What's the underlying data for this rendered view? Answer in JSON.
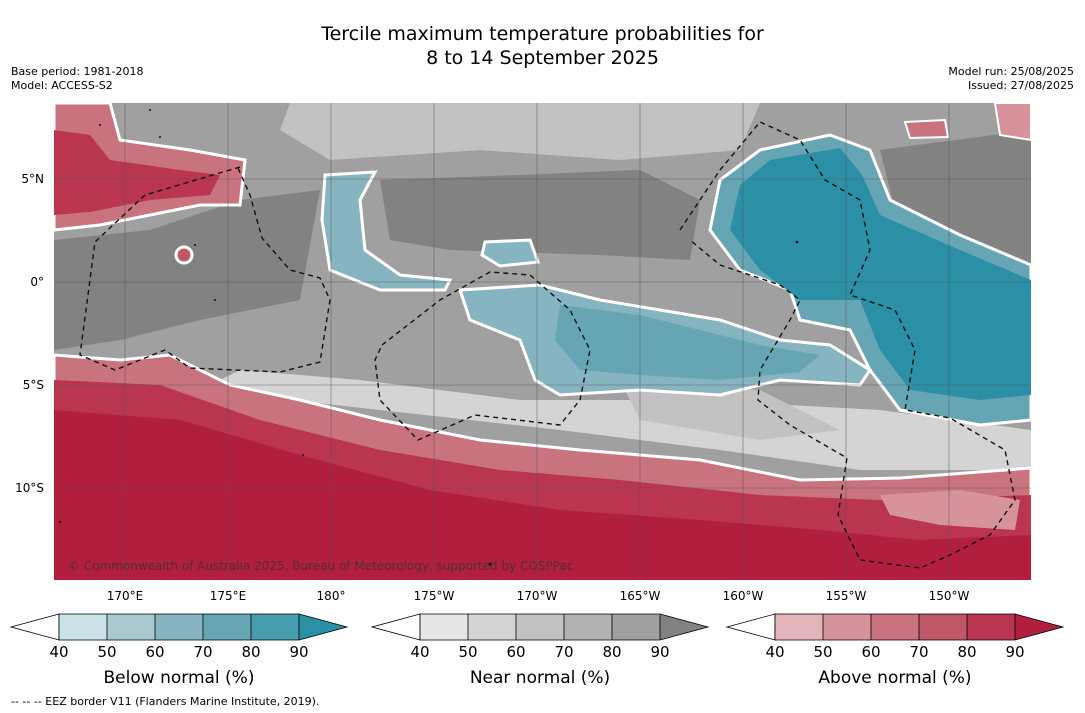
{
  "title_line1": "Tercile maximum temperature probabilities for",
  "title_line2": "8 to 14 September 2025",
  "base_period": "Base period: 1981-2018",
  "model": "Model: ACCESS-S2",
  "model_run": "Model run: 25/08/2025",
  "issued": "Issued: 27/08/2025",
  "copyright": "© Commonwealth of Australia 2025, Bureau of Meteorology, supported by COSPPac",
  "lon_labels": [
    "170°E",
    "175°E",
    "180°",
    "175°W",
    "170°W",
    "165°W",
    "160°W",
    "155°W",
    "150°W"
  ],
  "lat_labels": [
    "5°N",
    "0°",
    "5°S",
    "10°S"
  ],
  "colorbars": [
    {
      "title": "Below normal (%)",
      "ticks": [
        "40",
        "50",
        "60",
        "70",
        "80",
        "90"
      ],
      "colors": [
        "#c9e1e7",
        "#a8c9d0",
        "#86b4c0",
        "#66a6b4",
        "#479dae",
        "#2b8fa5"
      ]
    },
    {
      "title": "Near normal (%)",
      "ticks": [
        "40",
        "50",
        "60",
        "70",
        "80",
        "90"
      ],
      "colors": [
        "#e6e6e6",
        "#d4d4d4",
        "#c2c2c2",
        "#b1b1b1",
        "#a0a0a0",
        "#828282"
      ]
    },
    {
      "title": "Above normal (%)",
      "ticks": [
        "40",
        "50",
        "60",
        "70",
        "80",
        "90"
      ],
      "colors": [
        "#e3b5bb",
        "#d6939b",
        "#c9737e",
        "#c05767",
        "#b93550",
        "#b21e3e"
      ]
    }
  ],
  "legend_text": "-- -- -- EEZ border V11 (Flanders Marine Institute, 2019).",
  "colors": {
    "below_strong": "#2b8fa5",
    "near_dark": "#828282",
    "above_strong": "#b21e3e"
  }
}
